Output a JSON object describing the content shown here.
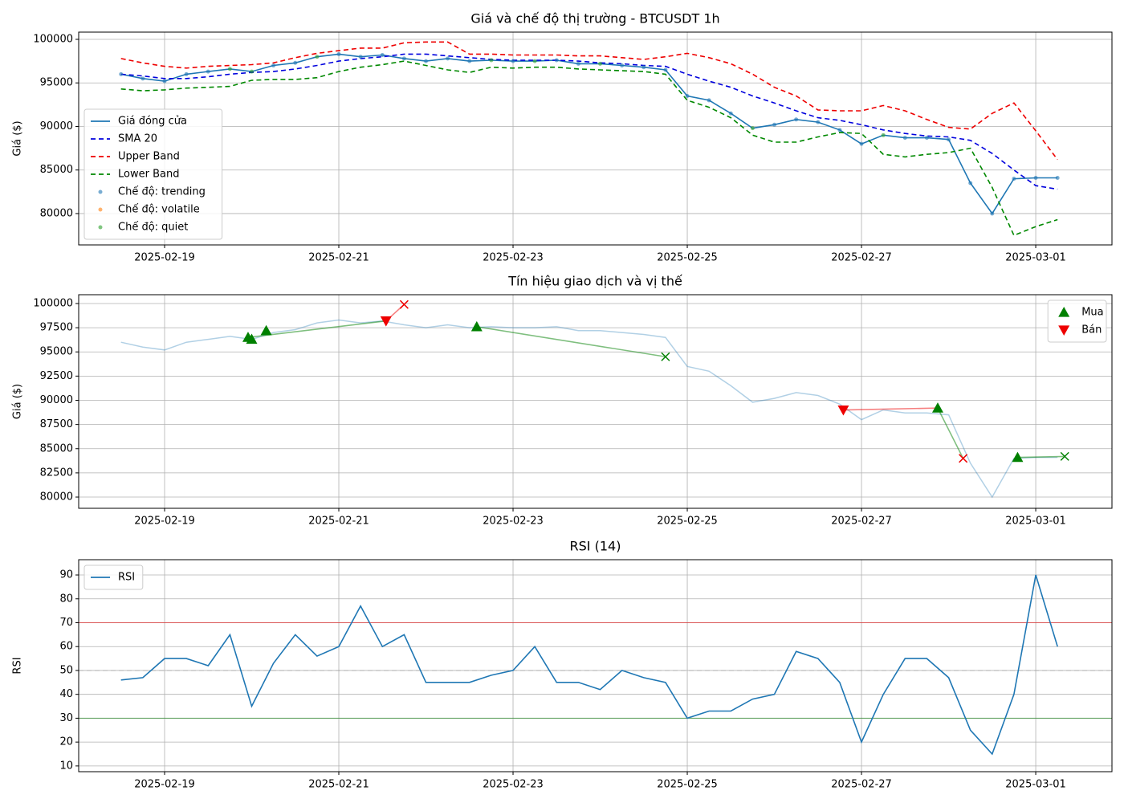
{
  "chart_data": [
    {
      "type": "line",
      "title": "Giá và chế độ thị trường - BTCUSDT 1h",
      "ylabel": "Giá ($)",
      "x": [
        "2025-02-18 12:00",
        "2025-02-18 18:00",
        "2025-02-19 00:00",
        "2025-02-19 06:00",
        "2025-02-19 12:00",
        "2025-02-19 18:00",
        "2025-02-20 00:00",
        "2025-02-20 06:00",
        "2025-02-20 12:00",
        "2025-02-20 18:00",
        "2025-02-21 00:00",
        "2025-02-21 06:00",
        "2025-02-21 12:00",
        "2025-02-21 18:00",
        "2025-02-22 00:00",
        "2025-02-22 06:00",
        "2025-02-22 12:00",
        "2025-02-22 18:00",
        "2025-02-23 00:00",
        "2025-02-23 06:00",
        "2025-02-23 12:00",
        "2025-02-23 18:00",
        "2025-02-24 00:00",
        "2025-02-24 06:00",
        "2025-02-24 12:00",
        "2025-02-24 18:00",
        "2025-02-25 00:00",
        "2025-02-25 06:00",
        "2025-02-25 12:00",
        "2025-02-25 18:00",
        "2025-02-26 00:00",
        "2025-02-26 06:00",
        "2025-02-26 12:00",
        "2025-02-26 18:00",
        "2025-02-27 00:00",
        "2025-02-27 06:00",
        "2025-02-27 12:00",
        "2025-02-27 18:00",
        "2025-02-28 00:00",
        "2025-02-28 06:00",
        "2025-02-28 12:00",
        "2025-02-28 18:00",
        "2025-03-01 00:00",
        "2025-03-01 06:00"
      ],
      "xlim": [
        "2025-02-18 00:20",
        "2025-03-01 21:00"
      ],
      "xticks": [
        "2025-02-19",
        "2025-02-21",
        "2025-02-23",
        "2025-02-25",
        "2025-02-27",
        "2025-03-01"
      ],
      "ylim": [
        76400,
        100830
      ],
      "yticks": [
        80000,
        85000,
        90000,
        95000,
        100000
      ],
      "grid": true,
      "legend": "lower left",
      "series": [
        {
          "name": "Giá đóng cửa",
          "color": "#1f77b4",
          "linestyle": "solid",
          "values": [
            96000,
            95500,
            95200,
            96000,
            96300,
            96600,
            96300,
            97000,
            97300,
            98000,
            98300,
            98000,
            98200,
            97800,
            97500,
            97800,
            97500,
            97600,
            97500,
            97500,
            97600,
            97200,
            97200,
            97000,
            96800,
            96500,
            93500,
            93000,
            91500,
            89800,
            90200,
            90800,
            90500,
            89600,
            88000,
            89000,
            88700,
            88700,
            88500,
            83500,
            80000,
            84000,
            84100,
            84100
          ]
        },
        {
          "name": "SMA 20",
          "color": "#0000dd",
          "linestyle": "dashed",
          "values": [
            96000,
            95800,
            95500,
            95500,
            95700,
            96000,
            96200,
            96300,
            96600,
            97000,
            97500,
            97800,
            98000,
            98300,
            98300,
            98100,
            97900,
            97700,
            97600,
            97600,
            97600,
            97500,
            97300,
            97200,
            97000,
            96900,
            96000,
            95200,
            94500,
            93500,
            92700,
            91800,
            91000,
            90700,
            90200,
            89600,
            89200,
            88900,
            88800,
            88400,
            86900,
            85000,
            83200,
            82800
          ]
        },
        {
          "name": "Upper Band",
          "color": "#ee0000",
          "linestyle": "dashed",
          "values": [
            97800,
            97300,
            96900,
            96700,
            96900,
            97000,
            97100,
            97300,
            97900,
            98400,
            98700,
            99000,
            99000,
            99600,
            99700,
            99700,
            98300,
            98300,
            98200,
            98200,
            98200,
            98100,
            98100,
            97900,
            97700,
            98000,
            98400,
            97900,
            97200,
            96000,
            94500,
            93500,
            91900,
            91800,
            91800,
            92400,
            91800,
            90800,
            89900,
            89700,
            91500,
            92700,
            89500,
            86200
          ]
        },
        {
          "name": "Lower Band",
          "color": "#008800",
          "linestyle": "dashed",
          "values": [
            94300,
            94100,
            94200,
            94400,
            94500,
            94600,
            95300,
            95400,
            95400,
            95600,
            96300,
            96800,
            97100,
            97500,
            97000,
            96500,
            96200,
            96800,
            96700,
            96800,
            96800,
            96600,
            96500,
            96400,
            96300,
            96000,
            93000,
            92200,
            91000,
            89000,
            88200,
            88200,
            88800,
            89300,
            89200,
            86800,
            86500,
            86800,
            87000,
            87500,
            83000,
            77500,
            78500,
            79300
          ]
        }
      ],
      "scatter_series": [
        {
          "name": "Chế độ: trending",
          "color": "#1f77b4",
          "values": [
            96000,
            95500,
            95200,
            96000,
            96300,
            null,
            null,
            97000,
            97300,
            null,
            98300,
            98000,
            98200,
            97800,
            97500,
            97800,
            97500,
            null,
            97500,
            null,
            97600,
            97200,
            null,
            97000,
            96800,
            96500,
            93500,
            93000,
            91500,
            null,
            90200,
            90800,
            90500,
            89600,
            88000,
            null,
            88700,
            88700,
            88500,
            83500,
            80000,
            84000,
            84100,
            84100
          ]
        },
        {
          "name": "Chế độ: volatile",
          "color": "#ff7f0e",
          "values": [
            null,
            null,
            null,
            null,
            null,
            null,
            null,
            null,
            null,
            null,
            null,
            null,
            null,
            null,
            null,
            null,
            null,
            null,
            null,
            null,
            null,
            null,
            null,
            null,
            null,
            null,
            null,
            null,
            null,
            null,
            null,
            null,
            null,
            null,
            null,
            null,
            null,
            null,
            null,
            null,
            null,
            null,
            null,
            null
          ]
        },
        {
          "name": "Chế độ: quiet",
          "color": "#2ca02c",
          "values": [
            null,
            null,
            null,
            null,
            null,
            96600,
            96300,
            null,
            null,
            98000,
            null,
            null,
            null,
            null,
            null,
            null,
            null,
            97600,
            null,
            97500,
            null,
            null,
            97200,
            null,
            null,
            null,
            null,
            null,
            null,
            89800,
            null,
            null,
            null,
            null,
            null,
            89000,
            null,
            null,
            null,
            null,
            null,
            null,
            null,
            null
          ]
        }
      ]
    },
    {
      "type": "signals",
      "title": "Tín hiệu giao dịch và vị thế",
      "ylabel": "Giá ($)",
      "x": [
        "2025-02-18 12:00",
        "2025-02-18 18:00",
        "2025-02-19 00:00",
        "2025-02-19 06:00",
        "2025-02-19 12:00",
        "2025-02-19 18:00",
        "2025-02-20 00:00",
        "2025-02-20 06:00",
        "2025-02-20 12:00",
        "2025-02-20 18:00",
        "2025-02-21 00:00",
        "2025-02-21 06:00",
        "2025-02-21 12:00",
        "2025-02-21 18:00",
        "2025-02-22 00:00",
        "2025-02-22 06:00",
        "2025-02-22 12:00",
        "2025-02-22 18:00",
        "2025-02-23 00:00",
        "2025-02-23 06:00",
        "2025-02-23 12:00",
        "2025-02-23 18:00",
        "2025-02-24 00:00",
        "2025-02-24 06:00",
        "2025-02-24 12:00",
        "2025-02-24 18:00",
        "2025-02-25 00:00",
        "2025-02-25 06:00",
        "2025-02-25 12:00",
        "2025-02-25 18:00",
        "2025-02-26 00:00",
        "2025-02-26 06:00",
        "2025-02-26 12:00",
        "2025-02-26 18:00",
        "2025-02-27 00:00",
        "2025-02-27 06:00",
        "2025-02-27 12:00",
        "2025-02-27 18:00",
        "2025-02-28 00:00",
        "2025-02-28 06:00",
        "2025-02-28 12:00",
        "2025-02-28 18:00",
        "2025-03-01 00:00",
        "2025-03-01 06:00"
      ],
      "price_color": "#1f77b4",
      "price_values": [
        96000,
        95500,
        95200,
        96000,
        96300,
        96600,
        96300,
        97000,
        97300,
        98000,
        98300,
        98000,
        98200,
        97800,
        97500,
        97800,
        97500,
        97600,
        97500,
        97500,
        97600,
        97200,
        97200,
        97000,
        96800,
        96500,
        93500,
        93000,
        91500,
        89800,
        90200,
        90800,
        90500,
        89600,
        88000,
        89000,
        88700,
        88700,
        88500,
        83500,
        80000,
        84000,
        84100,
        84100
      ],
      "xlim": [
        "2025-02-18 00:20",
        "2025-03-01 21:00"
      ],
      "xticks": [
        "2025-02-19",
        "2025-02-21",
        "2025-02-23",
        "2025-02-25",
        "2025-02-27",
        "2025-03-01"
      ],
      "ylim": [
        78840,
        100910
      ],
      "yticks": [
        80000,
        82500,
        85000,
        87500,
        90000,
        92500,
        95000,
        97500,
        100000
      ],
      "grid": true,
      "legend": "upper right",
      "buys": {
        "name": "Mua",
        "color": "#008000",
        "x": [
          "2025-02-19 23:00",
          "2025-02-20 00:00",
          "2025-02-20 04:00",
          "2025-02-22 14:00",
          "2025-02-27 21:00",
          "2025-02-28 19:00"
        ],
        "values": [
          96500,
          96300,
          97200,
          97600,
          89200,
          84100
        ]
      },
      "sells": {
        "name": "Bán",
        "color": "#ee0000",
        "x": [
          "2025-02-21 13:00",
          "2025-02-26 19:00"
        ],
        "values": [
          98200,
          89000
        ]
      },
      "exits": {
        "x": [
          "2025-02-21 18:00",
          "2025-02-24 18:00",
          "2025-02-28 04:00",
          "2025-03-01 08:00"
        ],
        "values": [
          99900,
          94500,
          84000,
          84200
        ],
        "colors": [
          "#ee0000",
          "#008000",
          "#ee0000",
          "#008000"
        ]
      },
      "trades": [
        {
          "color": "#008000",
          "x": [
            "2025-02-19 23:00",
            "2025-02-21 13:00"
          ],
          "values": [
            96500,
            98200
          ]
        },
        {
          "color": "#ee0000",
          "x": [
            "2025-02-21 13:00",
            "2025-02-21 18:00"
          ],
          "values": [
            98200,
            99900
          ]
        },
        {
          "color": "#008000",
          "x": [
            "2025-02-22 14:00",
            "2025-02-24 18:00"
          ],
          "values": [
            97600,
            94500
          ]
        },
        {
          "color": "#ee0000",
          "x": [
            "2025-02-26 19:00",
            "2025-02-27 21:00"
          ],
          "values": [
            89000,
            89200
          ]
        },
        {
          "color": "#008000",
          "x": [
            "2025-02-27 21:00",
            "2025-02-28 04:00"
          ],
          "values": [
            89200,
            84000
          ]
        },
        {
          "color": "#008000",
          "x": [
            "2025-02-28 19:00",
            "2025-03-01 08:00"
          ],
          "values": [
            84100,
            84200
          ]
        }
      ]
    },
    {
      "type": "line",
      "title": "RSI (14)",
      "ylabel": "RSI",
      "x": [
        "2025-02-18 12:00",
        "2025-02-18 18:00",
        "2025-02-19 00:00",
        "2025-02-19 06:00",
        "2025-02-19 12:00",
        "2025-02-19 18:00",
        "2025-02-20 00:00",
        "2025-02-20 06:00",
        "2025-02-20 12:00",
        "2025-02-20 18:00",
        "2025-02-21 00:00",
        "2025-02-21 06:00",
        "2025-02-21 12:00",
        "2025-02-21 18:00",
        "2025-02-22 00:00",
        "2025-02-22 06:00",
        "2025-02-22 12:00",
        "2025-02-22 18:00",
        "2025-02-23 00:00",
        "2025-02-23 06:00",
        "2025-02-23 12:00",
        "2025-02-23 18:00",
        "2025-02-24 00:00",
        "2025-02-24 06:00",
        "2025-02-24 12:00",
        "2025-02-24 18:00",
        "2025-02-25 00:00",
        "2025-02-25 06:00",
        "2025-02-25 12:00",
        "2025-02-25 18:00",
        "2025-02-26 00:00",
        "2025-02-26 06:00",
        "2025-02-26 12:00",
        "2025-02-26 18:00",
        "2025-02-27 00:00",
        "2025-02-27 06:00",
        "2025-02-27 12:00",
        "2025-02-27 18:00",
        "2025-02-28 00:00",
        "2025-02-28 06:00",
        "2025-02-28 12:00",
        "2025-02-28 18:00",
        "2025-03-01 00:00",
        "2025-03-01 06:00"
      ],
      "xlim": [
        "2025-02-18 00:20",
        "2025-03-01 21:00"
      ],
      "xticks": [
        "2025-02-19",
        "2025-02-21",
        "2025-02-23",
        "2025-02-25",
        "2025-02-27",
        "2025-03-01"
      ],
      "ylim": [
        7.6,
        96.4
      ],
      "yticks": [
        10,
        20,
        30,
        40,
        50,
        60,
        70,
        80,
        90
      ],
      "grid": true,
      "legend": "upper left",
      "hlines": [
        {
          "value": 70,
          "color": "#ee0000",
          "linestyle": "solid"
        },
        {
          "value": 30,
          "color": "#008000",
          "linestyle": "solid"
        },
        {
          "value": 50,
          "color": "#999999",
          "linestyle": "dashed"
        }
      ],
      "series": [
        {
          "name": "RSI",
          "color": "#1f77b4",
          "linestyle": "solid",
          "values": [
            46,
            47,
            55,
            55,
            52,
            65,
            35,
            53,
            65,
            56,
            60,
            77,
            60,
            65,
            45,
            45,
            45,
            48,
            50,
            60,
            45,
            45,
            42,
            50,
            47,
            45,
            30,
            33,
            33,
            38,
            40,
            58,
            55,
            45,
            20,
            40,
            55,
            55,
            47,
            25,
            15,
            40,
            90,
            60
          ]
        }
      ]
    }
  ]
}
